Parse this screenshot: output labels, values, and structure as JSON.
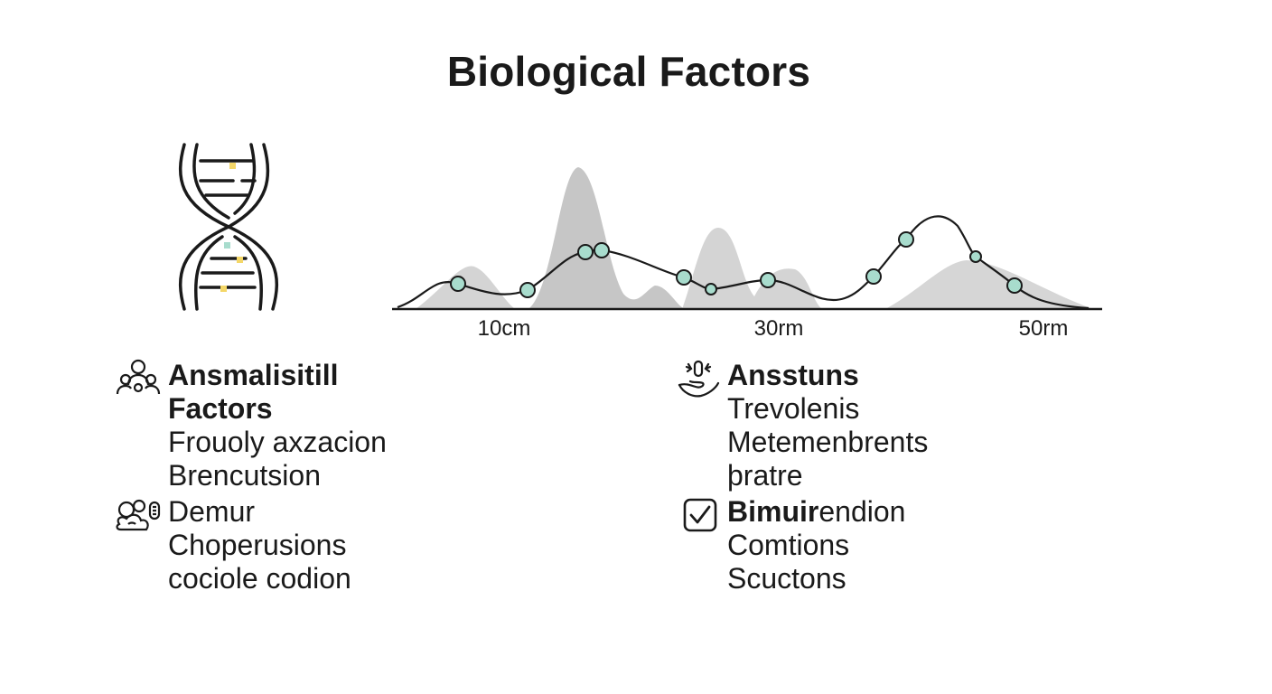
{
  "title": "Biological Factors",
  "icons": {
    "dna": "dna-icon",
    "people": "people-group-icon",
    "cells": "cell-cluster-icon",
    "hand": "hand-care-icon",
    "check": "checkbox-checked-icon"
  },
  "colors": {
    "text": "#1a1a1a",
    "marker": "#a8dccd",
    "area": "#cfcfcf",
    "area_dark": "#bdbdbd",
    "dna_highlight": "#f4d768"
  },
  "chart_data": {
    "type": "line",
    "ticks": [
      "10cm",
      "30rm",
      "50rm"
    ]
  },
  "left_block_1": {
    "heading": [
      "Ansmalisitill",
      "Factors"
    ],
    "lines": [
      "Frouoly axzacion",
      "Brencutsion"
    ]
  },
  "left_block_2": {
    "lines": [
      "Demur",
      "Choperusions",
      "cociole codion"
    ]
  },
  "right_block_1": {
    "heading": "Ansstuns",
    "lines": [
      "Trevolenis",
      "Metemenbrents",
      "þratre"
    ]
  },
  "right_block_2": {
    "heading_bold": "Bimuir",
    "heading_rest": "endion",
    "lines": [
      "Comtions",
      "Scuctons"
    ]
  }
}
